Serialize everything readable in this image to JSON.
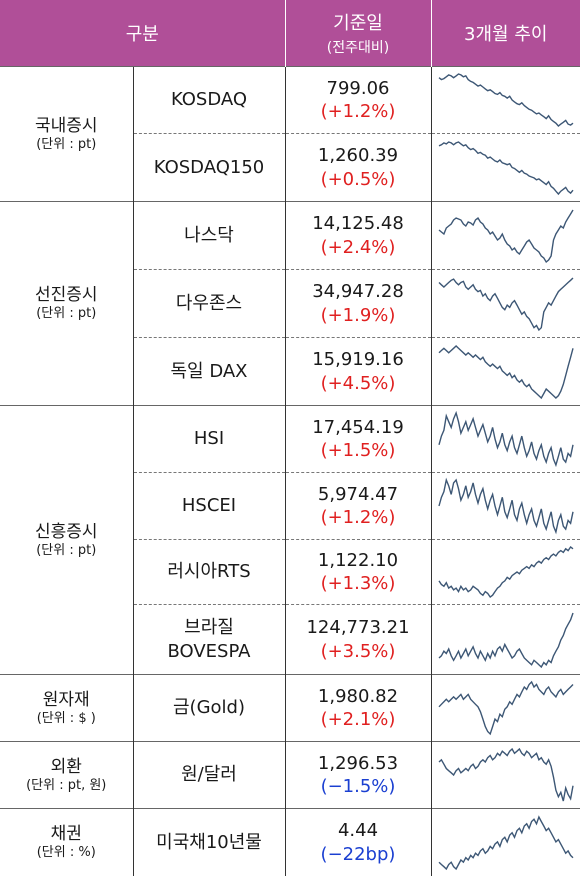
{
  "header": {
    "category": "구분",
    "base_date": "기준일",
    "base_date_sub": "(전주대비)",
    "trend": "3개월 추이"
  },
  "groups": [
    {
      "name": "국내증시",
      "unit": "(단위 : pt)",
      "rows": [
        {
          "index": "KOSDAQ",
          "value": "799.06",
          "change": "(+1.2%)",
          "dir": "pos",
          "spark": [
            62,
            60,
            61,
            63,
            65,
            64,
            62,
            64,
            66,
            65,
            63,
            64,
            60,
            58,
            57,
            55,
            53,
            54,
            52,
            50,
            48,
            49,
            47,
            45,
            44,
            46,
            43,
            42,
            40,
            42,
            38,
            36,
            34,
            33,
            35,
            32,
            30,
            28,
            27,
            25,
            23,
            24,
            22,
            20,
            18,
            21,
            17,
            15,
            13,
            10,
            12,
            14,
            16,
            12,
            11,
            13
          ]
        },
        {
          "index": "KOSDAQ150",
          "value": "1,260.39",
          "change": "(+0.5%)",
          "dir": "pos",
          "spark": [
            60,
            61,
            63,
            62,
            64,
            63,
            61,
            63,
            64,
            62,
            60,
            61,
            58,
            56,
            57,
            55,
            52,
            53,
            51,
            50,
            47,
            48,
            46,
            44,
            43,
            45,
            42,
            41,
            40,
            41,
            37,
            36,
            34,
            32,
            34,
            31,
            30,
            28,
            27,
            26,
            24,
            25,
            23,
            21,
            19,
            22,
            17,
            15,
            12,
            9,
            12,
            14,
            16,
            12,
            10,
            13
          ]
        }
      ]
    },
    {
      "name": "선진증시",
      "unit": "(단위 : pt)",
      "rows": [
        {
          "index": "나스닥",
          "value": "14,125.48",
          "change": "(+2.4%)",
          "dir": "pos",
          "spark": [
            40,
            38,
            36,
            42,
            44,
            46,
            50,
            52,
            51,
            50,
            46,
            44,
            48,
            47,
            45,
            50,
            52,
            48,
            46,
            42,
            40,
            36,
            38,
            34,
            30,
            32,
            36,
            30,
            26,
            24,
            20,
            22,
            18,
            16,
            20,
            24,
            28,
            30,
            26,
            22,
            20,
            18,
            14,
            12,
            8,
            10,
            14,
            30,
            36,
            40,
            44,
            42,
            48,
            52,
            56,
            60
          ]
        },
        {
          "index": "다우존스",
          "value": "34,947.28",
          "change": "(+1.9%)",
          "dir": "pos",
          "spark": [
            52,
            50,
            48,
            50,
            52,
            54,
            55,
            52,
            50,
            52,
            53,
            48,
            46,
            48,
            50,
            46,
            44,
            45,
            40,
            42,
            38,
            36,
            40,
            42,
            38,
            34,
            30,
            28,
            32,
            30,
            34,
            36,
            32,
            28,
            24,
            26,
            22,
            20,
            16,
            12,
            14,
            10,
            12,
            26,
            30,
            34,
            32,
            36,
            40,
            44,
            46,
            48,
            50,
            52,
            54,
            56
          ]
        },
        {
          "index": "독일 DAX",
          "value": "15,919.16",
          "change": "(+4.5%)",
          "dir": "pos",
          "spark": [
            48,
            50,
            52,
            50,
            48,
            50,
            52,
            54,
            52,
            50,
            48,
            46,
            48,
            46,
            44,
            46,
            44,
            42,
            44,
            40,
            38,
            36,
            38,
            36,
            34,
            36,
            32,
            30,
            28,
            30,
            26,
            28,
            24,
            22,
            24,
            20,
            18,
            20,
            16,
            14,
            12,
            10,
            8,
            12,
            16,
            14,
            12,
            10,
            8,
            10,
            14,
            20,
            28,
            36,
            44,
            52
          ]
        }
      ]
    },
    {
      "name": "신흥증시",
      "unit": "(단위 : pt)",
      "rows": [
        {
          "index": "HSI",
          "value": "17,454.19",
          "change": "(+1.5%)",
          "dir": "pos",
          "spark": [
            30,
            36,
            40,
            50,
            46,
            42,
            48,
            52,
            46,
            38,
            42,
            46,
            40,
            44,
            48,
            42,
            36,
            40,
            44,
            38,
            32,
            36,
            42,
            34,
            28,
            32,
            38,
            30,
            26,
            32,
            36,
            28,
            24,
            30,
            36,
            28,
            22,
            26,
            32,
            24,
            20,
            26,
            30,
            22,
            18,
            24,
            28,
            20,
            16,
            22,
            28,
            20,
            18,
            24,
            22,
            30
          ]
        },
        {
          "index": "HSCEI",
          "value": "5,974.47",
          "change": "(+1.2%)",
          "dir": "pos",
          "spark": [
            32,
            38,
            42,
            50,
            46,
            40,
            48,
            50,
            44,
            36,
            40,
            46,
            38,
            42,
            48,
            40,
            34,
            40,
            44,
            36,
            30,
            36,
            40,
            32,
            26,
            32,
            38,
            28,
            24,
            30,
            36,
            26,
            22,
            30,
            34,
            26,
            20,
            26,
            30,
            22,
            18,
            24,
            30,
            20,
            16,
            22,
            28,
            18,
            14,
            22,
            26,
            18,
            16,
            22,
            20,
            28
          ]
        },
        {
          "index": "러시아RTS",
          "value": "1,122.10",
          "change": "(+1.3%)",
          "dir": "pos",
          "spark": [
            24,
            20,
            18,
            22,
            16,
            18,
            14,
            16,
            12,
            18,
            14,
            16,
            12,
            14,
            18,
            16,
            14,
            10,
            8,
            12,
            10,
            6,
            8,
            12,
            16,
            18,
            22,
            24,
            28,
            26,
            30,
            32,
            34,
            32,
            36,
            38,
            40,
            38,
            42,
            40,
            44,
            46,
            44,
            48,
            50,
            48,
            52,
            54,
            52,
            56,
            58,
            56,
            60,
            58,
            62,
            60
          ]
        },
        {
          "index": "브라질\nBOVESPA",
          "value": "124,773.21",
          "change": "(+3.5%)",
          "dir": "pos",
          "spark": [
            20,
            22,
            26,
            24,
            28,
            22,
            18,
            22,
            26,
            20,
            24,
            28,
            22,
            26,
            30,
            24,
            20,
            26,
            22,
            18,
            24,
            20,
            26,
            22,
            28,
            30,
            26,
            32,
            28,
            24,
            20,
            22,
            26,
            28,
            24,
            20,
            18,
            16,
            14,
            18,
            16,
            14,
            12,
            16,
            14,
            18,
            16,
            22,
            26,
            30,
            36,
            40,
            46,
            50,
            54,
            60
          ]
        }
      ]
    },
    {
      "name": "원자재",
      "unit": "(단위 : $ )",
      "rows": [
        {
          "index": "금(Gold)",
          "value": "1,980.82",
          "change": "(+2.1%)",
          "dir": "pos",
          "spark": [
            40,
            42,
            44,
            46,
            44,
            46,
            48,
            46,
            48,
            50,
            46,
            48,
            50,
            46,
            44,
            42,
            40,
            36,
            30,
            24,
            20,
            18,
            24,
            30,
            28,
            34,
            32,
            38,
            40,
            44,
            42,
            46,
            50,
            48,
            52,
            56,
            54,
            58,
            60,
            56,
            58,
            54,
            52,
            50,
            54,
            56,
            52,
            50,
            48,
            52,
            54,
            50,
            52,
            54,
            56,
            58
          ]
        }
      ]
    },
    {
      "name": "외환",
      "unit": "(단위 : pt, 원)",
      "rows": [
        {
          "index": "원/달러",
          "value": "1,296.53",
          "change": "(−1.5%)",
          "dir": "neg",
          "spark": [
            44,
            46,
            42,
            38,
            36,
            34,
            32,
            36,
            38,
            34,
            36,
            38,
            36,
            40,
            42,
            38,
            40,
            44,
            46,
            44,
            48,
            50,
            46,
            48,
            52,
            50,
            54,
            52,
            50,
            54,
            56,
            52,
            54,
            56,
            52,
            50,
            54,
            52,
            48,
            50,
            52,
            46,
            48,
            44,
            42,
            46,
            40,
            30,
            18,
            12,
            16,
            8,
            20,
            14,
            10,
            22
          ]
        }
      ]
    },
    {
      "name": "채권",
      "unit": "(단위 : %)",
      "rows": [
        {
          "index": "미국채10년물",
          "value": "4.44",
          "change": "(−22bp)",
          "dir": "neg",
          "spark": [
            18,
            16,
            14,
            12,
            16,
            18,
            14,
            12,
            16,
            20,
            18,
            22,
            20,
            24,
            22,
            26,
            24,
            28,
            30,
            26,
            28,
            32,
            30,
            34,
            36,
            32,
            38,
            40,
            36,
            42,
            44,
            40,
            46,
            48,
            44,
            50,
            52,
            48,
            54,
            56,
            52,
            58,
            54,
            50,
            46,
            48,
            44,
            40,
            36,
            38,
            34,
            30,
            26,
            28,
            24,
            22
          ]
        }
      ]
    }
  ]
}
